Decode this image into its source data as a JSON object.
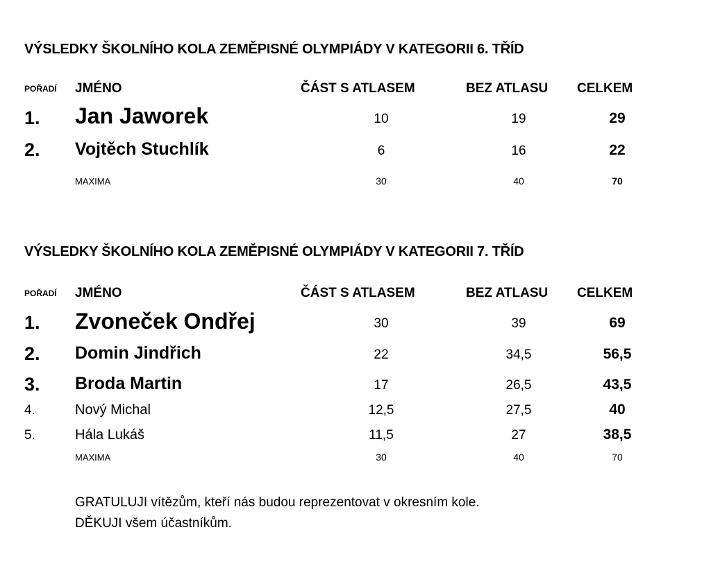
{
  "sections": [
    {
      "title": "VÝSLEDKY ŠKOLNÍHO KOLA ZEMĚPISNÉ OLYMPIÁDY V KATEGORII 6. TŘÍD",
      "headers": {
        "rank": "POŘADÍ",
        "name": "JMÉNO",
        "atlas": "ČÁST S ATLASEM",
        "bez": "BEZ ATLASU",
        "total": "CELKEM"
      },
      "rows": [
        {
          "rank": "1.",
          "name": "Jan Jaworek",
          "atlas": "10",
          "bez": "19",
          "total": "29"
        },
        {
          "rank": "2.",
          "name": "Vojtěch Stuchlík",
          "atlas": "6",
          "bez": "16",
          "total": "22"
        }
      ],
      "maxima": {
        "label": "MAXIMA",
        "atlas": "30",
        "bez": "40",
        "total": "70"
      }
    },
    {
      "title": "VÝSLEDKY ŠKOLNÍHO KOLA ZEMĚPISNÉ OLYMPIÁDY V KATEGORII 7. TŘÍD",
      "headers": {
        "rank": "POŘADÍ",
        "name": "JMÉNO",
        "atlas": "ČÁST S ATLASEM",
        "bez": "BEZ ATLASU",
        "total": "CELKEM"
      },
      "rows": [
        {
          "rank": "1.",
          "name": "Zvoneček Ondřej",
          "atlas": "30",
          "bez": "39",
          "total": "69"
        },
        {
          "rank": "2.",
          "name": "Domin Jindřich",
          "atlas": "22",
          "bez": "34,5",
          "total": "56,5"
        },
        {
          "rank": "3.",
          "name": "Broda Martin",
          "atlas": "17",
          "bez": "26,5",
          "total": "43,5"
        },
        {
          "rank": "4.",
          "name": "Nový Michal",
          "atlas": "12,5",
          "bez": "27,5",
          "total": "40"
        },
        {
          "rank": "5.",
          "name": "Hála Lukáš",
          "atlas": "11,5",
          "bez": "27",
          "total": "38,5"
        }
      ],
      "maxima": {
        "label": "MAXIMA",
        "atlas": "30",
        "bez": "40",
        "total": "70"
      }
    }
  ],
  "footer": {
    "line1": "GRATULUJI vítězům, kteří nás budou reprezentovat v okresním kole.",
    "line2": "DĚKUJI všem účastníkům."
  }
}
